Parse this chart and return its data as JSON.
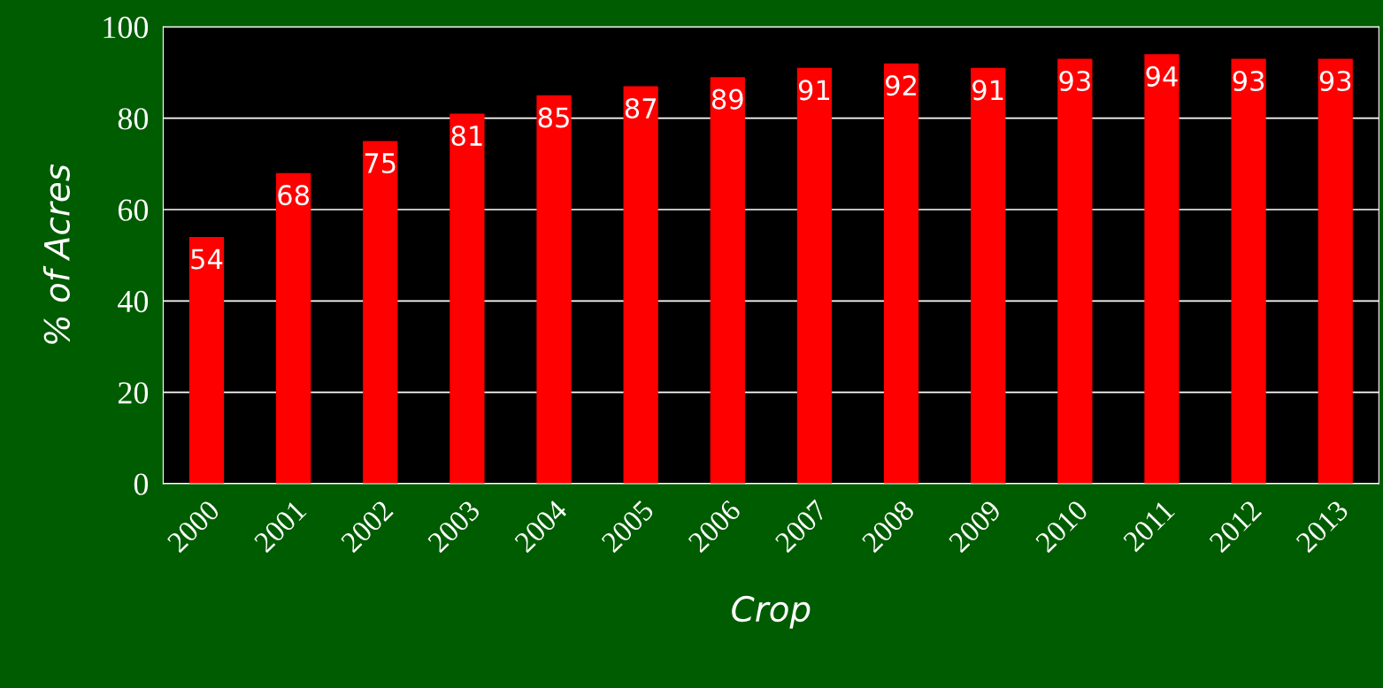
{
  "chart_data": {
    "type": "bar",
    "xlabel": "Crop",
    "ylabel": "% of Acres",
    "categories": [
      "2000",
      "2001",
      "2002",
      "2003",
      "2004",
      "2005",
      "2006",
      "2007",
      "2008",
      "2009",
      "2010",
      "2011",
      "2012",
      "2013"
    ],
    "values": [
      54,
      68,
      75,
      81,
      85,
      87,
      89,
      91,
      92,
      91,
      93,
      94,
      93,
      93
    ],
    "color": "#ff0000",
    "ylim": [
      0,
      100
    ],
    "yticks": [
      0,
      20,
      40,
      60,
      80,
      100
    ],
    "grid": "y",
    "data_labels": true
  }
}
